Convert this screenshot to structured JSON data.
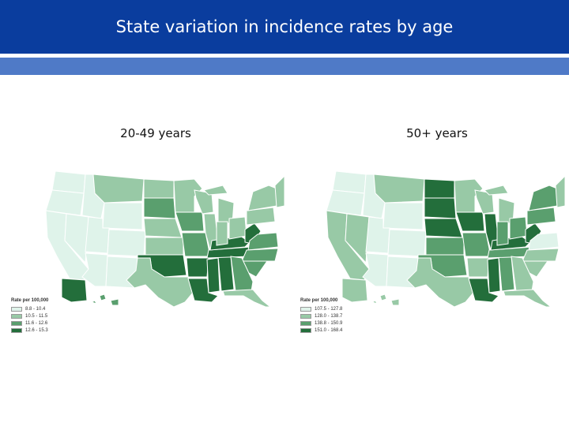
{
  "title": "State variation in incidence rates by age",
  "palette": [
    "#dff3ea",
    "#98c9a6",
    "#5a9f6e",
    "#236e3b"
  ],
  "panels": [
    {
      "label": "20-49 years",
      "legend_title": "Rate per 100,000",
      "legend_items": [
        "8.8 - 10.4",
        "10.5 - 11.5",
        "11.6 - 12.6",
        "12.6 - 15.3"
      ],
      "regions": {
        "wa": 0,
        "or": 0,
        "ca": 0,
        "nv": 0,
        "id": 0,
        "mt": 1,
        "wy": 0,
        "ut": 0,
        "co": 0,
        "az": 0,
        "nm": 0,
        "nd": 1,
        "sd": 2,
        "ne": 1,
        "ks": 1,
        "ok": 3,
        "tx": 1,
        "mn": 1,
        "ia": 2,
        "mo": 2,
        "ar": 3,
        "la": 3,
        "wi": 1,
        "il": 1,
        "ms": 3,
        "al": 3,
        "tn": 3,
        "ky": 3,
        "mi": 1,
        "in": 1,
        "oh": 1,
        "wv": 3,
        "pa": 1,
        "ny": 1,
        "ne_states": 1,
        "va": 2,
        "nc": 2,
        "sc": 2,
        "ga": 2,
        "fl": 1,
        "ak": 3,
        "hi": 2
      }
    },
    {
      "label": "50+ years",
      "legend_title": "Rate per 100,000",
      "legend_items": [
        "107.5 - 127.8",
        "128.0 - 138.7",
        "138.8 - 150.9",
        "151.0 - 168.4"
      ],
      "regions": {
        "wa": 0,
        "or": 0,
        "ca": 1,
        "nv": 1,
        "id": 0,
        "mt": 1,
        "wy": 0,
        "ut": 0,
        "co": 0,
        "az": 0,
        "nm": 0,
        "nd": 3,
        "sd": 3,
        "ne": 3,
        "ks": 2,
        "ok": 2,
        "tx": 1,
        "mn": 1,
        "ia": 3,
        "mo": 2,
        "ar": 1,
        "la": 3,
        "wi": 1,
        "il": 3,
        "ms": 3,
        "al": 2,
        "tn": 2,
        "ky": 3,
        "mi": 1,
        "in": 2,
        "oh": 2,
        "wv": 3,
        "pa": 2,
        "ny": 2,
        "ne_states": 1,
        "va": 0,
        "nc": 1,
        "sc": 1,
        "ga": 1,
        "fl": 1,
        "ak": 1,
        "hi": 1
      }
    }
  ]
}
